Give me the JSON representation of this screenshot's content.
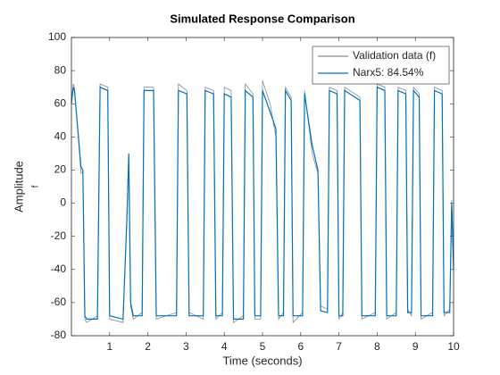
{
  "chart_data": {
    "type": "line",
    "title": "Simulated Response Comparison",
    "xlabel": "Time (seconds)",
    "ylabel": "Amplitude",
    "ylabel_sub": "f",
    "x": [
      0,
      0.05,
      0.08,
      0.25,
      0.3,
      0.35,
      0.4,
      0.68,
      0.75,
      0.95,
      1.0,
      1.35,
      1.45,
      1.5,
      1.55,
      1.62,
      1.85,
      1.9,
      2.15,
      2.22,
      2.75,
      2.8,
      3.02,
      3.08,
      3.45,
      3.5,
      3.72,
      3.78,
      3.95,
      4.0,
      4.18,
      4.24,
      4.5,
      4.55,
      4.75,
      4.8,
      4.95,
      5.0,
      5.2,
      5.35,
      5.42,
      5.55,
      5.6,
      5.75,
      5.8,
      6.05,
      6.1,
      6.3,
      6.45,
      6.52,
      6.7,
      6.75,
      6.95,
      7.0,
      7.1,
      7.15,
      7.55,
      7.6,
      7.95,
      8.0,
      8.2,
      8.25,
      8.5,
      8.55,
      8.75,
      8.8,
      8.9,
      8.95,
      9.1,
      9.15,
      9.45,
      9.5,
      9.7,
      9.75,
      9.9,
      9.95,
      10
    ],
    "series": [
      {
        "name": "Validation data (f)",
        "color": "#8c8c8c",
        "values": [
          62,
          72,
          70,
          18,
          19,
          -70,
          -72,
          -68,
          72,
          70,
          -70,
          -72,
          -8,
          25,
          -62,
          -70,
          -66,
          70,
          70,
          -70,
          -66,
          72,
          68,
          -66,
          -70,
          70,
          68,
          -70,
          -66,
          70,
          68,
          -72,
          -68,
          72,
          66,
          -70,
          -70,
          74,
          60,
          40,
          -70,
          -66,
          70,
          64,
          -72,
          -66,
          68,
          30,
          18,
          -62,
          -64,
          70,
          68,
          -70,
          -66,
          70,
          64,
          -70,
          -66,
          72,
          70,
          -70,
          -66,
          70,
          68,
          -64,
          -68,
          70,
          66,
          -70,
          -66,
          70,
          68,
          -68,
          -64,
          2,
          -38
        ]
      },
      {
        "name": "Narx5: 84.54%",
        "color": "#0072bd",
        "values": [
          60,
          70,
          68,
          22,
          20,
          -68,
          -70,
          -70,
          70,
          68,
          -68,
          -70,
          -10,
          30,
          -60,
          -68,
          -68,
          68,
          68,
          -68,
          -68,
          68,
          66,
          -68,
          -68,
          68,
          66,
          -68,
          -68,
          66,
          64,
          -70,
          -70,
          68,
          64,
          -68,
          -68,
          68,
          55,
          45,
          -68,
          -68,
          68,
          62,
          -68,
          -68,
          66,
          35,
          20,
          -65,
          -66,
          68,
          66,
          -68,
          -68,
          68,
          62,
          -68,
          -68,
          70,
          68,
          -68,
          -68,
          68,
          66,
          -66,
          -66,
          68,
          64,
          -68,
          -68,
          68,
          66,
          -66,
          -66,
          0,
          -40
        ]
      }
    ],
    "xlim": [
      0,
      10
    ],
    "xticks": [
      1,
      2,
      3,
      4,
      5,
      6,
      7,
      8,
      9,
      10
    ],
    "ylim": [
      -80,
      100
    ],
    "yticks": [
      -80,
      -60,
      -40,
      -20,
      0,
      20,
      40,
      60,
      80,
      100
    ],
    "legend": "northeast"
  }
}
